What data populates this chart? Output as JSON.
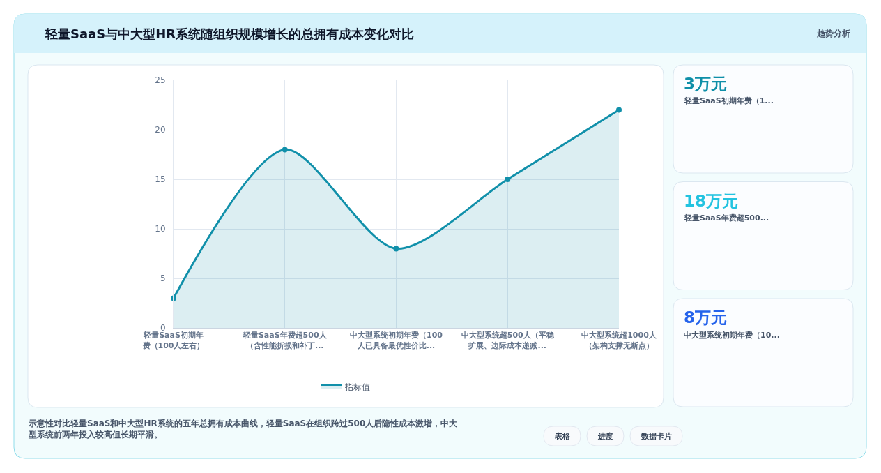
{
  "chart_data": [
    {
      "type": "area",
      "title": "轻量SaaS与中大型HR系统随组织规模增长的总拥有成本变化对比",
      "categories": [
        "轻量SaaS初期年费（100人左右）",
        "轻量SaaS年费超500人（含性能折损和补丁...",
        "中大型系统初期年费（100人已具备最优性价比...",
        "中大型系统超500人（平稳扩展、边际成本递减...",
        "中大型系统超1000人（架构支撑无断点）"
      ],
      "series": [
        {
          "name": "指标值",
          "color": "#1190aa",
          "values": [
            3,
            18,
            8,
            15,
            22
          ]
        }
      ],
      "ylim": [
        0,
        25
      ],
      "yticks": [
        0,
        5,
        10,
        15,
        20,
        25
      ],
      "grid": true,
      "legend": "bottom",
      "marker": "circle",
      "annotations": [
        "趋势分析",
        "示意性对比轻量SaaS和中大型HR系统的五年总拥有成本曲线，轻量SaaS在组织跨过500人后隐性成本激增，中大型系统前两年投入较高但长期平滑。",
        "表格",
        "进度",
        "数据卡片"
      ]
    },
    {
      "type": "other",
      "title": "3万元",
      "subtitle": "轻量SaaS初期年费（1...",
      "color": "#0e8fa8"
    },
    {
      "type": "other",
      "title": "18万元",
      "subtitle": "轻量SaaS年费超500...",
      "color": "#22c3e0"
    },
    {
      "type": "other",
      "title": "8万元",
      "subtitle": "中大型系统初期年费（10...",
      "color": "#2563eb"
    }
  ]
}
